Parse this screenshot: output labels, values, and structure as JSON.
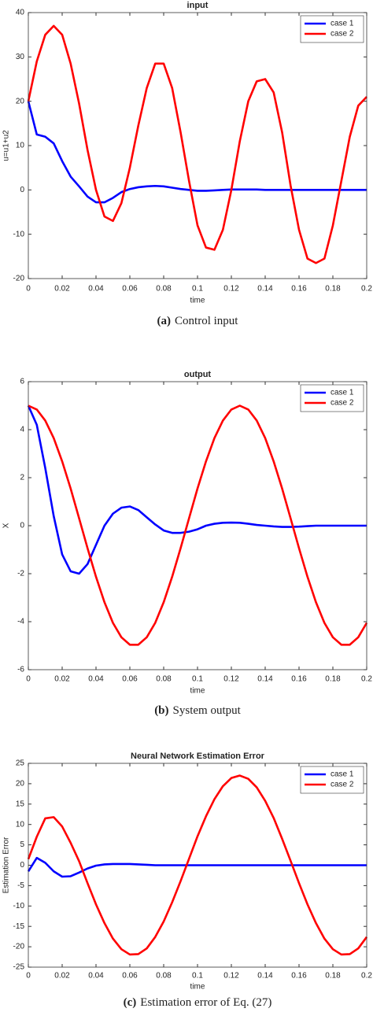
{
  "chart_data": [
    {
      "type": "line",
      "title": "input",
      "xlabel": "time",
      "ylabel": "u=u1+u2",
      "caption_label": "(a)",
      "caption": "Control input",
      "x": [
        0,
        0.005,
        0.01,
        0.015,
        0.02,
        0.025,
        0.03,
        0.035,
        0.04,
        0.045,
        0.05,
        0.055,
        0.06,
        0.065,
        0.07,
        0.075,
        0.08,
        0.085,
        0.09,
        0.095,
        0.1,
        0.105,
        0.11,
        0.115,
        0.12,
        0.125,
        0.13,
        0.135,
        0.14,
        0.145,
        0.15,
        0.155,
        0.16,
        0.165,
        0.17,
        0.175,
        0.18,
        0.185,
        0.19,
        0.195,
        0.2
      ],
      "series": [
        {
          "name": "case 1",
          "color": "#0000ff",
          "values": [
            20,
            12.5,
            12,
            10.5,
            6.5,
            3,
            0.8,
            -1.5,
            -2.8,
            -2.8,
            -1.8,
            -0.5,
            0.2,
            0.6,
            0.8,
            0.9,
            0.8,
            0.5,
            0.2,
            0,
            -0.2,
            -0.2,
            -0.1,
            0,
            0.1,
            0.1,
            0.1,
            0.1,
            0,
            0,
            0,
            0,
            0,
            0,
            0,
            0,
            0,
            0,
            0,
            0,
            0
          ]
        },
        {
          "name": "case 2",
          "color": "#ff0000",
          "values": [
            20,
            29,
            35,
            37,
            35,
            28.5,
            19.5,
            9,
            0,
            -6,
            -7,
            -3,
            5,
            14.5,
            23,
            28.5,
            28.5,
            23,
            13,
            2,
            -8,
            -13,
            -13.5,
            -9,
            0,
            11,
            20,
            24.5,
            25,
            22,
            13,
            1,
            -9,
            -15.5,
            -16.5,
            -15.5,
            -8,
            2,
            12,
            19,
            21
          ]
        }
      ],
      "xlim": [
        0,
        0.2
      ],
      "xticks": [
        0,
        0.02,
        0.04,
        0.06,
        0.08,
        0.1,
        0.12,
        0.14,
        0.16,
        0.18,
        0.2
      ],
      "ylim": [
        -20,
        40
      ],
      "yticks": [
        -20,
        -10,
        0,
        10,
        20,
        30,
        40
      ],
      "grid": false,
      "legend": "northeast"
    },
    {
      "type": "line",
      "title": "output",
      "xlabel": "time",
      "ylabel": "X",
      "caption_label": "(b)",
      "caption": "System output",
      "x": [
        0,
        0.005,
        0.01,
        0.015,
        0.02,
        0.025,
        0.03,
        0.035,
        0.04,
        0.045,
        0.05,
        0.055,
        0.06,
        0.065,
        0.07,
        0.075,
        0.08,
        0.085,
        0.09,
        0.095,
        0.1,
        0.105,
        0.11,
        0.115,
        0.12,
        0.125,
        0.13,
        0.135,
        0.14,
        0.145,
        0.15,
        0.155,
        0.16,
        0.165,
        0.17,
        0.175,
        0.18,
        0.185,
        0.19,
        0.195,
        0.2
      ],
      "series": [
        {
          "name": "case 1",
          "color": "#0000ff",
          "values": [
            5,
            4.2,
            2.4,
            0.4,
            -1.2,
            -1.9,
            -2,
            -1.6,
            -0.8,
            0,
            0.5,
            0.75,
            0.8,
            0.65,
            0.35,
            0.05,
            -0.2,
            -0.3,
            -0.3,
            -0.25,
            -0.15,
            0,
            0.08,
            0.12,
            0.13,
            0.12,
            0.08,
            0.03,
            0,
            -0.03,
            -0.05,
            -0.05,
            -0.04,
            -0.02,
            0,
            0,
            0,
            0,
            0,
            0,
            0
          ]
        },
        {
          "name": "case 2",
          "color": "#ff0000",
          "values": [
            5,
            4.84,
            4.38,
            3.65,
            2.68,
            1.55,
            0.31,
            -0.94,
            -2.13,
            -3.19,
            -4.05,
            -4.65,
            -4.96,
            -4.96,
            -4.65,
            -4.05,
            -3.19,
            -2.13,
            -0.94,
            0.31,
            1.55,
            2.68,
            3.65,
            4.38,
            4.84,
            5,
            4.84,
            4.38,
            3.65,
            2.68,
            1.55,
            0.31,
            -0.94,
            -2.13,
            -3.19,
            -4.05,
            -4.65,
            -4.96,
            -4.96,
            -4.65,
            -4.05
          ]
        }
      ],
      "xlim": [
        0,
        0.2
      ],
      "xticks": [
        0,
        0.02,
        0.04,
        0.06,
        0.08,
        0.1,
        0.12,
        0.14,
        0.16,
        0.18,
        0.2
      ],
      "ylim": [
        -6,
        6
      ],
      "yticks": [
        -6,
        -4,
        -2,
        0,
        2,
        4,
        6
      ],
      "grid": false,
      "legend": "northeast"
    },
    {
      "type": "line",
      "title": "Neural Network Estimation Error",
      "xlabel": "time",
      "ylabel": "Estimation Error",
      "caption_label": "(c)",
      "caption": "Estimation error of Eq. (27)",
      "x": [
        0,
        0.005,
        0.01,
        0.015,
        0.02,
        0.025,
        0.03,
        0.035,
        0.04,
        0.045,
        0.05,
        0.055,
        0.06,
        0.065,
        0.07,
        0.075,
        0.08,
        0.085,
        0.09,
        0.095,
        0.1,
        0.105,
        0.11,
        0.115,
        0.12,
        0.125,
        0.13,
        0.135,
        0.14,
        0.145,
        0.15,
        0.155,
        0.16,
        0.165,
        0.17,
        0.175,
        0.18,
        0.185,
        0.19,
        0.195,
        0.2
      ],
      "series": [
        {
          "name": "case 1",
          "color": "#0000ff",
          "values": [
            -1.5,
            1.8,
            0.6,
            -1.5,
            -2.8,
            -2.7,
            -1.8,
            -0.8,
            -0.1,
            0.2,
            0.3,
            0.3,
            0.3,
            0.2,
            0.1,
            0,
            0,
            0,
            0,
            0,
            0,
            0,
            0,
            0,
            0,
            0,
            0,
            0,
            0,
            0,
            0,
            0,
            0,
            0,
            0,
            0,
            0,
            0,
            0,
            0,
            0
          ]
        },
        {
          "name": "case 2",
          "color": "#ff0000",
          "values": [
            1.5,
            7,
            11.5,
            11.8,
            9.5,
            5.5,
            1,
            -4.4,
            -9.6,
            -14.2,
            -18,
            -20.6,
            -21.9,
            -21.8,
            -20.4,
            -17.6,
            -13.8,
            -9.1,
            -3.9,
            1.6,
            7.1,
            12,
            16.2,
            19.4,
            21.4,
            22,
            21.2,
            19.1,
            15.8,
            11.6,
            6.5,
            1.1,
            -4.4,
            -9.6,
            -14.2,
            -18,
            -20.6,
            -21.9,
            -21.8,
            -20.4,
            -17.6
          ]
        }
      ],
      "xlim": [
        0,
        0.2
      ],
      "xticks": [
        0,
        0.02,
        0.04,
        0.06,
        0.08,
        0.1,
        0.12,
        0.14,
        0.16,
        0.18,
        0.2
      ],
      "ylim": [
        -25,
        25
      ],
      "yticks": [
        -25,
        -20,
        -15,
        -10,
        -5,
        0,
        5,
        10,
        15,
        20,
        25
      ],
      "grid": false,
      "legend": "northeast"
    }
  ]
}
